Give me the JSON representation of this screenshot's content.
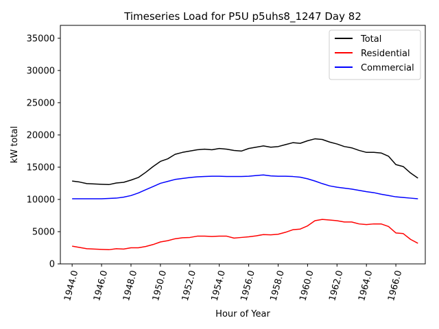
{
  "chart_data": {
    "type": "line",
    "title": "Timeseries Load for P5U p5uhs8_1247  Day 82",
    "xlabel": "Hour of Year",
    "ylabel": "kW total",
    "xlim": [
      1943.2,
      1968.0
    ],
    "ylim": [
      0,
      37000
    ],
    "xticks": [
      1944,
      1946,
      1948,
      1950,
      1952,
      1954,
      1956,
      1958,
      1960,
      1962,
      1964,
      1966
    ],
    "xtick_labels": [
      "1944.0",
      "1946.0",
      "1948.0",
      "1950.0",
      "1952.0",
      "1954.0",
      "1956.0",
      "1958.0",
      "1960.0",
      "1962.0",
      "1964.0",
      "1966.0"
    ],
    "yticks": [
      0,
      5000,
      10000,
      15000,
      20000,
      25000,
      30000,
      35000
    ],
    "ytick_labels": [
      "0",
      "5000",
      "10000",
      "15000",
      "20000",
      "25000",
      "30000",
      "35000"
    ],
    "legend_position": "top-right",
    "x": [
      1944.0,
      1944.5,
      1945.0,
      1945.5,
      1946.0,
      1946.5,
      1947.0,
      1947.5,
      1948.0,
      1948.5,
      1949.0,
      1949.5,
      1950.0,
      1950.5,
      1951.0,
      1951.5,
      1952.0,
      1952.5,
      1953.0,
      1953.5,
      1954.0,
      1954.5,
      1955.0,
      1955.5,
      1956.0,
      1956.5,
      1957.0,
      1957.5,
      1958.0,
      1958.5,
      1959.0,
      1959.5,
      1960.0,
      1960.5,
      1961.0,
      1961.5,
      1962.0,
      1962.5,
      1963.0,
      1963.5,
      1964.0,
      1964.5,
      1965.0,
      1965.5,
      1966.0,
      1966.5,
      1967.0,
      1967.5
    ],
    "series": [
      {
        "name": "Total",
        "color": "#000000",
        "values": [
          12850,
          12700,
          12450,
          12400,
          12350,
          12300,
          12550,
          12650,
          13000,
          13400,
          14200,
          15100,
          15900,
          16300,
          17000,
          17300,
          17500,
          17700,
          17800,
          17700,
          17900,
          17800,
          17600,
          17500,
          17900,
          18100,
          18300,
          18100,
          18200,
          18500,
          18800,
          18700,
          19100,
          19400,
          19300,
          18900,
          18600,
          18200,
          18000,
          17600,
          17300,
          17300,
          17200,
          16700,
          15400,
          15100,
          14100,
          13300
        ]
      },
      {
        "name": "Residential",
        "color": "#ff0000",
        "values": [
          2750,
          2550,
          2350,
          2300,
          2250,
          2200,
          2350,
          2300,
          2500,
          2500,
          2700,
          3000,
          3400,
          3600,
          3900,
          4050,
          4100,
          4300,
          4300,
          4250,
          4300,
          4300,
          4000,
          4100,
          4200,
          4350,
          4550,
          4500,
          4600,
          4900,
          5300,
          5400,
          5900,
          6700,
          6900,
          6800,
          6700,
          6500,
          6500,
          6200,
          6100,
          6200,
          6200,
          5800,
          4800,
          4700,
          3800,
          3200
        ]
      },
      {
        "name": "Commercial",
        "color": "#0000ff",
        "values": [
          10100,
          10100,
          10100,
          10100,
          10100,
          10150,
          10200,
          10350,
          10600,
          11000,
          11500,
          12000,
          12500,
          12800,
          13100,
          13250,
          13400,
          13500,
          13550,
          13600,
          13600,
          13550,
          13550,
          13550,
          13600,
          13700,
          13800,
          13650,
          13600,
          13600,
          13550,
          13450,
          13200,
          12850,
          12450,
          12100,
          11900,
          11750,
          11600,
          11400,
          11200,
          11050,
          10800,
          10600,
          10400,
          10300,
          10200,
          10100
        ]
      }
    ]
  }
}
